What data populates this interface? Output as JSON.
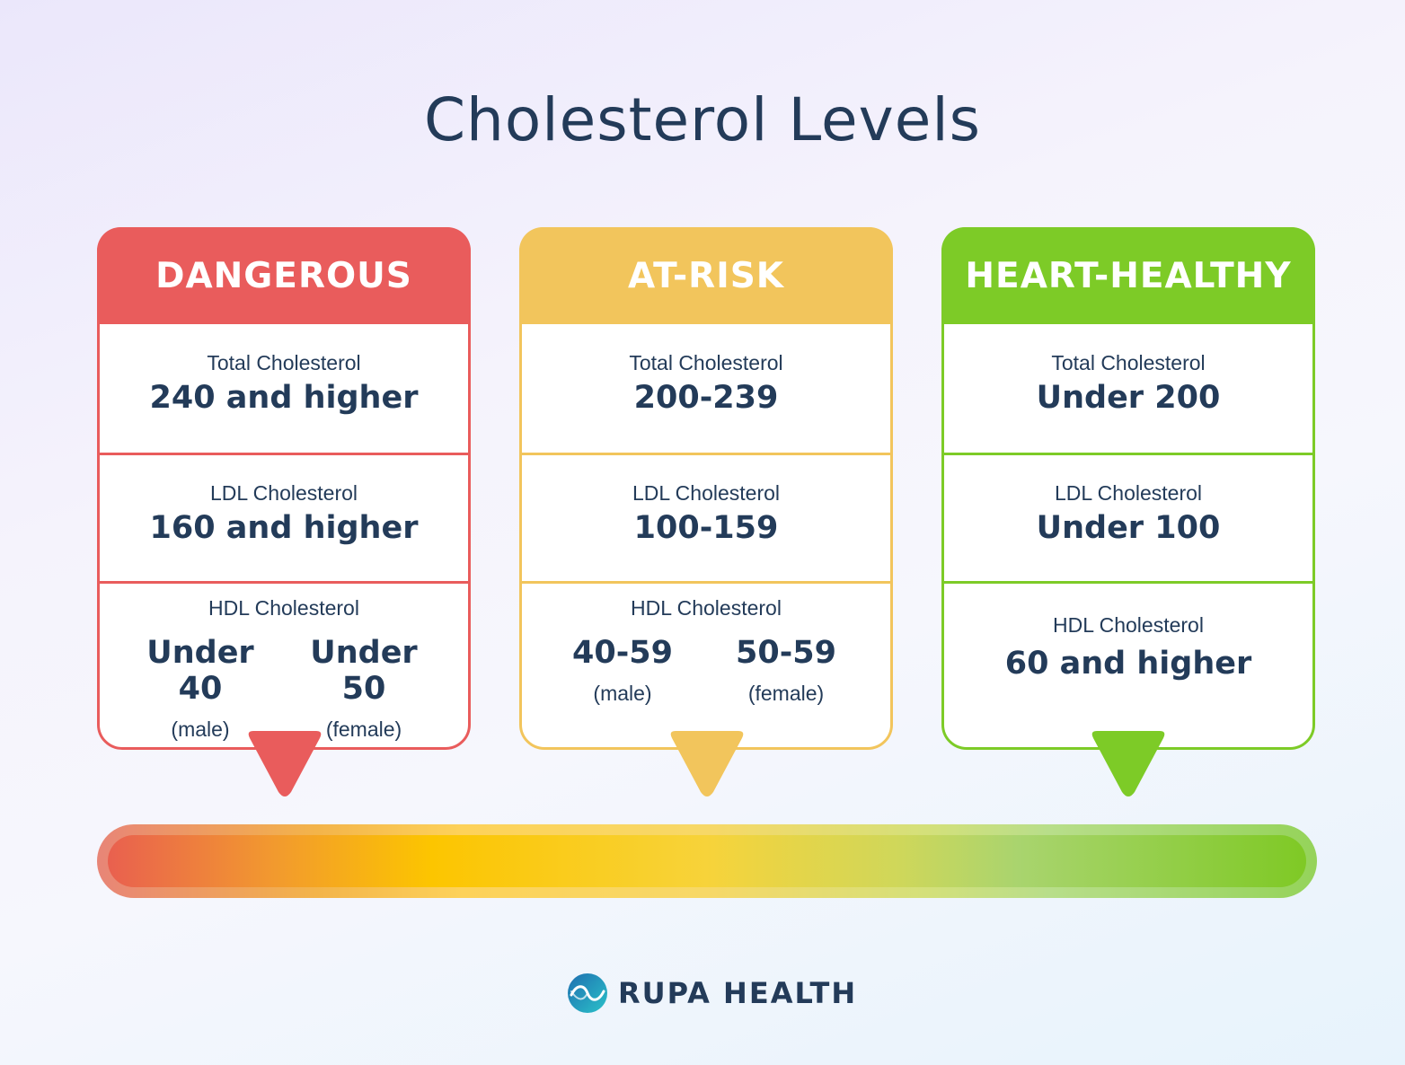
{
  "title": "Cholesterol Levels",
  "colors": {
    "dangerous": "#e95c5c",
    "at_risk": "#f2c55c",
    "heart_healthy": "#7dcb27",
    "text": "#233b59"
  },
  "cards": [
    {
      "heading": "DANGEROUS",
      "total_label": "Total Cholesterol",
      "total_value": "240 and higher",
      "ldl_label": "LDL Cholesterol",
      "ldl_value": "160 and higher",
      "hdl_label": "HDL Cholesterol",
      "hdl_male_value": "Under 40",
      "hdl_male_label": "(male)",
      "hdl_female_value": "Under 50",
      "hdl_female_label": "(female)"
    },
    {
      "heading": "AT-RISK",
      "total_label": "Total Cholesterol",
      "total_value": "200-239",
      "ldl_label": "LDL Cholesterol",
      "ldl_value": "100-159",
      "hdl_label": "HDL Cholesterol",
      "hdl_male_value": "40-59",
      "hdl_male_label": "(male)",
      "hdl_female_value": "50-59",
      "hdl_female_label": "(female)"
    },
    {
      "heading": "HEART-HEALTHY",
      "total_label": "Total Cholesterol",
      "total_value": "Under 200",
      "ldl_label": "LDL Cholesterol",
      "ldl_value": "Under 100",
      "hdl_label": "HDL Cholesterol",
      "hdl_value": "60 and higher"
    }
  ],
  "brand": {
    "name": "RUPA HEALTH",
    "logo_icon": "rupa-health-logo-icon"
  }
}
